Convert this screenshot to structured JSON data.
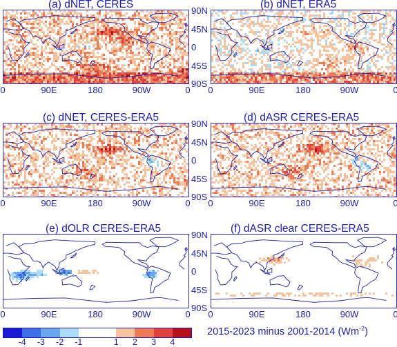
{
  "panels": [
    {
      "title": "(a) dNET, CERES",
      "pattern": "a"
    },
    {
      "title": "(b) dNET, ERA5",
      "pattern": "b"
    },
    {
      "title": "(c) dNET, CERES-ERA5",
      "pattern": "c"
    },
    {
      "title": "(d) dASR CERES-ERA5",
      "pattern": "c"
    },
    {
      "title": "(e) dOLR CERES-ERA5",
      "pattern": "e"
    },
    {
      "title": "(f) dASR clear CERES-ERA5",
      "pattern": "f"
    }
  ],
  "lat_labels": [
    "90N",
    "45N",
    "0",
    "45S",
    "90S"
  ],
  "lon_labels": [
    "0",
    "90E",
    "180",
    "90W",
    "0"
  ],
  "colorbar": {
    "colors": [
      "#1a1ad6",
      "#3f6fe6",
      "#6aa6ee",
      "#a9dcf6",
      "#ffffff",
      "#ffffff",
      "#f7c39c",
      "#ef7b55",
      "#e0413c",
      "#b3121a"
    ],
    "tick_labels": [
      "-4",
      "-3",
      "-2",
      "-1",
      "1",
      "2",
      "3",
      "4"
    ],
    "caption_prefix": "2015-2023 minus 2001-2014 (Wm",
    "caption_sup": "-2",
    "caption_suffix": ")"
  }
}
